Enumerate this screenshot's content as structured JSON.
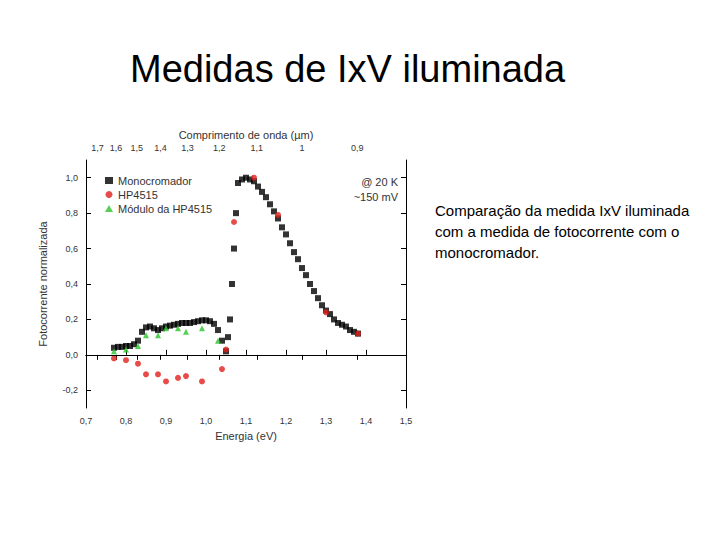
{
  "chart_data": {
    "type": "scatter",
    "title": "Medidas de IxV iluminada",
    "caption": "Comparação da medida IxV iluminada com a medida de fotocorrente com o monocromador.",
    "xlabel": "Energia (eV)",
    "ylabel": "Fotocorrente normalizada",
    "annotations": [
      "@ 20 K",
      "~150 mV"
    ],
    "xlim": [
      0.7,
      1.5
    ],
    "xticks": [
      {
        "value": 0.7,
        "label": "0,7"
      },
      {
        "value": 0.8,
        "label": "0,8"
      },
      {
        "value": 0.9,
        "label": "0,9"
      },
      {
        "value": 1.0,
        "label": "1,0"
      },
      {
        "value": 1.1,
        "label": "1,1"
      },
      {
        "value": 1.2,
        "label": "1,2"
      },
      {
        "value": 1.3,
        "label": "1,3"
      },
      {
        "value": 1.4,
        "label": "1,4"
      },
      {
        "value": 1.5,
        "label": "1,5"
      }
    ],
    "ylim": [
      -0.3,
      1.1
    ],
    "yticks": [
      {
        "value": -0.2,
        "label": "-0,2"
      },
      {
        "value": 0.0,
        "label": "0,0"
      },
      {
        "value": 0.2,
        "label": "0,2"
      },
      {
        "value": 0.4,
        "label": "0,4"
      },
      {
        "value": 0.6,
        "label": "0,6"
      },
      {
        "value": 0.8,
        "label": "0,8"
      },
      {
        "value": 1.0,
        "label": "1,0"
      }
    ],
    "top_axis": {
      "label": "Comprimento de onda (µm)",
      "ticks": [
        {
          "value": 0.729,
          "label": "1,7"
        },
        {
          "value": 0.775,
          "label": "1,6"
        },
        {
          "value": 0.827,
          "label": "1,5"
        },
        {
          "value": 0.886,
          "label": "1,4"
        },
        {
          "value": 0.954,
          "label": "1,3"
        },
        {
          "value": 1.033,
          "label": "1,2"
        },
        {
          "value": 1.127,
          "label": "1,1"
        },
        {
          "value": 1.24,
          "label": "1"
        },
        {
          "value": 1.378,
          "label": "0,9"
        }
      ]
    },
    "hline": 0,
    "grid": false,
    "legend": "upper left",
    "series": [
      {
        "name": "Monocromador",
        "color": "#000000",
        "marker": "square",
        "x": [
          0.77,
          0.78,
          0.79,
          0.8,
          0.81,
          0.82,
          0.83,
          0.84,
          0.85,
          0.86,
          0.87,
          0.88,
          0.89,
          0.9,
          0.91,
          0.92,
          0.93,
          0.94,
          0.95,
          0.96,
          0.97,
          0.98,
          0.99,
          1.0,
          1.01,
          1.02,
          1.03,
          1.04,
          1.05,
          1.055,
          1.06,
          1.065,
          1.07,
          1.075,
          1.08,
          1.09,
          1.1,
          1.11,
          1.12,
          1.13,
          1.14,
          1.15,
          1.16,
          1.17,
          1.18,
          1.19,
          1.2,
          1.21,
          1.22,
          1.23,
          1.24,
          1.25,
          1.26,
          1.27,
          1.28,
          1.29,
          1.3,
          1.31,
          1.32,
          1.33,
          1.34,
          1.35,
          1.36,
          1.37,
          1.38
        ],
        "values": [
          0.04,
          0.045,
          0.045,
          0.05,
          0.05,
          0.06,
          0.08,
          0.13,
          0.155,
          0.16,
          0.15,
          0.14,
          0.15,
          0.16,
          0.165,
          0.17,
          0.175,
          0.18,
          0.18,
          0.18,
          0.185,
          0.19,
          0.195,
          0.195,
          0.19,
          0.175,
          0.14,
          0.08,
          0.02,
          0.1,
          0.2,
          0.4,
          0.6,
          0.8,
          0.97,
          0.99,
          1.0,
          0.99,
          0.98,
          0.95,
          0.92,
          0.89,
          0.85,
          0.81,
          0.77,
          0.72,
          0.68,
          0.63,
          0.58,
          0.54,
          0.49,
          0.45,
          0.4,
          0.36,
          0.32,
          0.28,
          0.25,
          0.23,
          0.2,
          0.18,
          0.17,
          0.16,
          0.14,
          0.13,
          0.12
        ]
      },
      {
        "name": "HP4515",
        "color": "#e0201b",
        "marker": "circle",
        "x": [
          0.77,
          0.8,
          0.83,
          0.85,
          0.88,
          0.9,
          0.93,
          0.95,
          0.99,
          1.04,
          1.05,
          1.07,
          1.12,
          1.18,
          1.3,
          1.38
        ],
        "values": [
          -0.02,
          -0.03,
          -0.05,
          -0.11,
          -0.11,
          -0.15,
          -0.13,
          -0.12,
          -0.15,
          -0.08,
          0.03,
          0.75,
          1.0,
          0.79,
          0.24,
          0.12
        ]
      },
      {
        "name": "Módulo da HP4515",
        "color": "#2bc42b",
        "marker": "triangle",
        "x": [
          0.77,
          0.8,
          0.83,
          0.85,
          0.88,
          0.9,
          0.93,
          0.95,
          0.99,
          1.03
        ],
        "values": [
          0.02,
          0.03,
          0.05,
          0.11,
          0.11,
          0.15,
          0.15,
          0.13,
          0.15,
          0.08
        ]
      }
    ]
  }
}
